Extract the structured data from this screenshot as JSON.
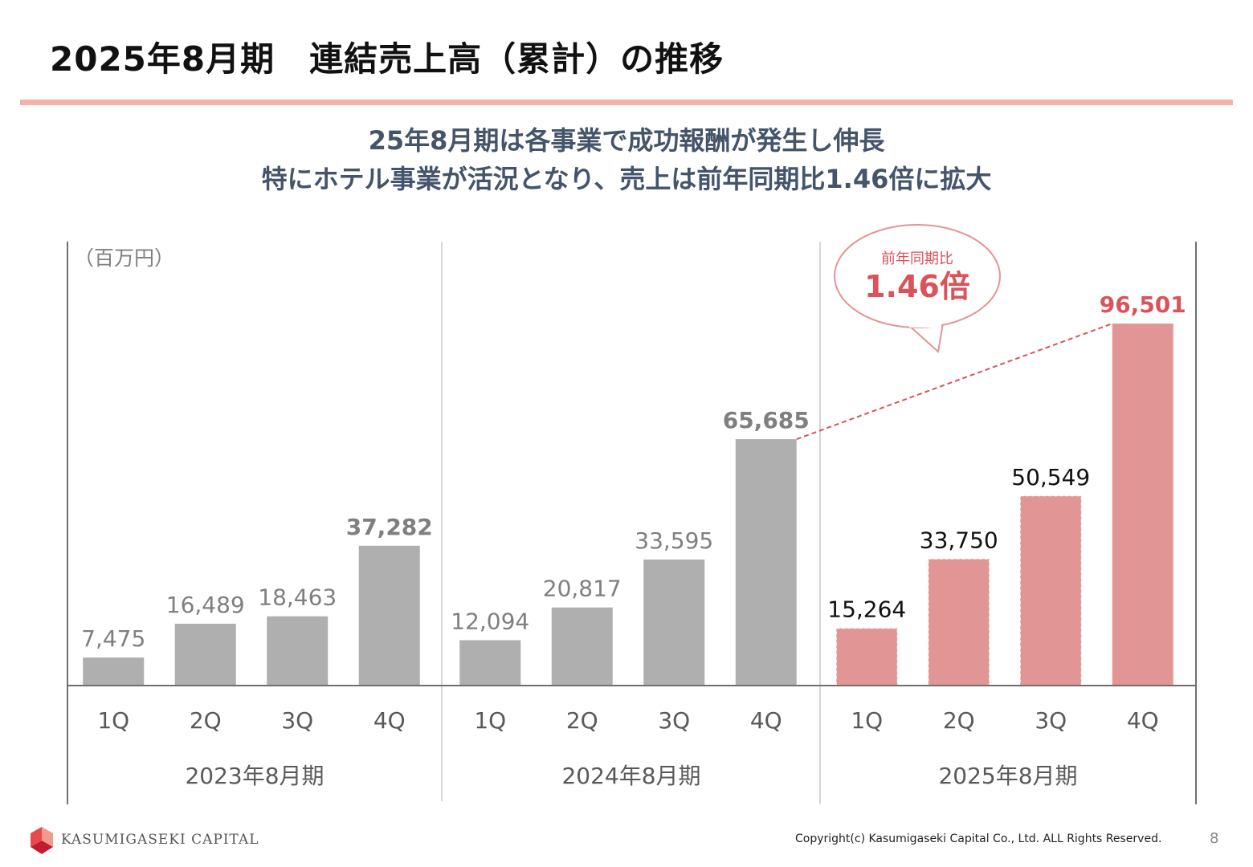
{
  "header": {
    "title": "2025年8月期　連結売上高（累計）の推移",
    "rule_color": "#f4b3a6"
  },
  "summary": {
    "line1": "25年8月期は各事業で成功報酬が発生し伸長",
    "line2": "特にホテル事業が活況となり、売上は前年同期比1.46倍に拡大"
  },
  "chart_data": {
    "type": "bar",
    "unit_label": "（百万円）",
    "ylim": [
      0,
      110000
    ],
    "groups": [
      {
        "label": "2023年8月期",
        "categories": [
          "1Q",
          "2Q",
          "3Q",
          "4Q"
        ],
        "values": [
          7475,
          16489,
          18463,
          37282
        ],
        "value_labels": [
          "7,475",
          "16,489",
          "18,463",
          "37,282"
        ],
        "color": "#afafaf",
        "label_color": "#7f7f7f"
      },
      {
        "label": "2024年8月期",
        "categories": [
          "1Q",
          "2Q",
          "3Q",
          "4Q"
        ],
        "values": [
          12094,
          20817,
          33595,
          65685
        ],
        "value_labels": [
          "12,094",
          "20,817",
          "33,595",
          "65,685"
        ],
        "color": "#afafaf",
        "label_color": "#7f7f7f"
      },
      {
        "label": "2025年8月期",
        "categories": [
          "1Q",
          "2Q",
          "3Q",
          "4Q"
        ],
        "values": [
          15264,
          33750,
          50549,
          96501
        ],
        "value_labels": [
          "15,264",
          "33,750",
          "50,549",
          "96,501"
        ],
        "color": "#e29595",
        "label_color": "#111111",
        "highlight_label_color": "#d9535a"
      }
    ],
    "callout": {
      "label": "前年同期比",
      "value": "1.46倍",
      "color": "#d9535a"
    },
    "grid": false
  },
  "footer": {
    "company": "KASUMIGASEKI CAPITAL",
    "copyright": "Copyright(c) Kasumigaseki Capital Co., Ltd. ALL Rights Reserved.",
    "page": "8",
    "logo_colors": [
      "#e84a4a",
      "#c21d2e",
      "#f29b8c"
    ]
  }
}
